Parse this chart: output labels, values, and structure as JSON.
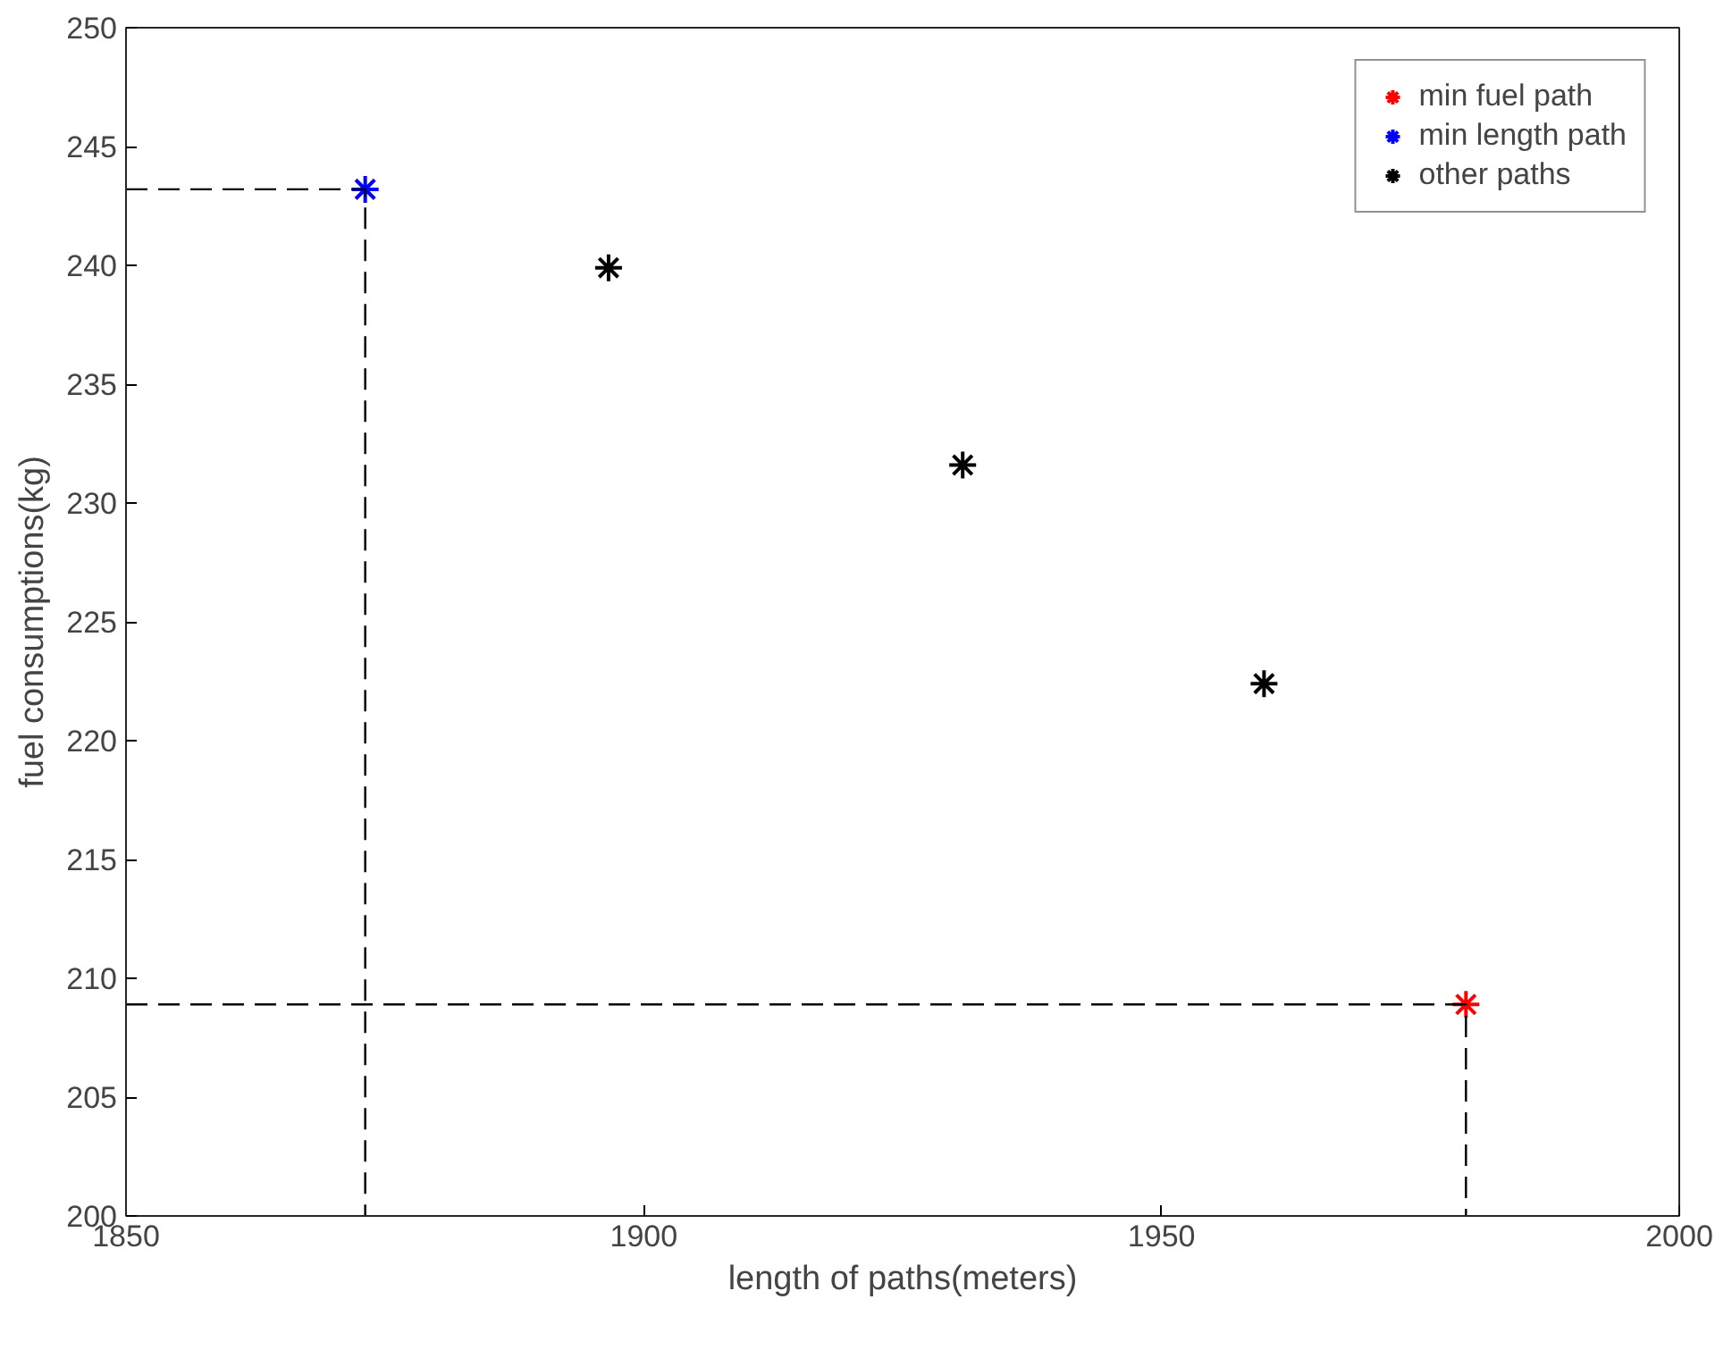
{
  "chart_data": {
    "type": "scatter",
    "xlabel": "length of paths(meters)",
    "ylabel": "fuel consumptions(kg)",
    "xlim": [
      1850,
      2000
    ],
    "xticks": [
      1850,
      1900,
      1950,
      2000
    ],
    "ylim": [
      200,
      250
    ],
    "yticks": [
      200,
      205,
      210,
      215,
      220,
      225,
      230,
      235,
      240,
      245,
      250
    ],
    "grid": false,
    "legend": "top right",
    "marker": "cross",
    "series": [
      {
        "name": "min fuel path",
        "color": "#ff0000",
        "x": [
          1979.4
        ],
        "values": [
          208.9
        ]
      },
      {
        "name": "min length path",
        "color": "#0000ff",
        "x": [
          1873.1
        ],
        "values": [
          243.2
        ]
      },
      {
        "name": "other paths",
        "color": "#000000",
        "x": [
          1896.6,
          1930.8,
          1959.9
        ],
        "values": [
          239.9,
          231.6,
          222.4
        ]
      },
      {
        "type": "line",
        "color": "#000000",
        "line_style": "dashed",
        "marker": "none",
        "x": [
          1850,
          1873.1,
          1873.1
        ],
        "values": [
          243.2,
          243.2,
          200
        ]
      },
      {
        "type": "line",
        "color": "#000000",
        "line_style": "dashed",
        "marker": "none",
        "x": [
          1850,
          1979.4,
          1979.4
        ],
        "values": [
          208.9,
          208.9,
          200
        ]
      }
    ]
  }
}
